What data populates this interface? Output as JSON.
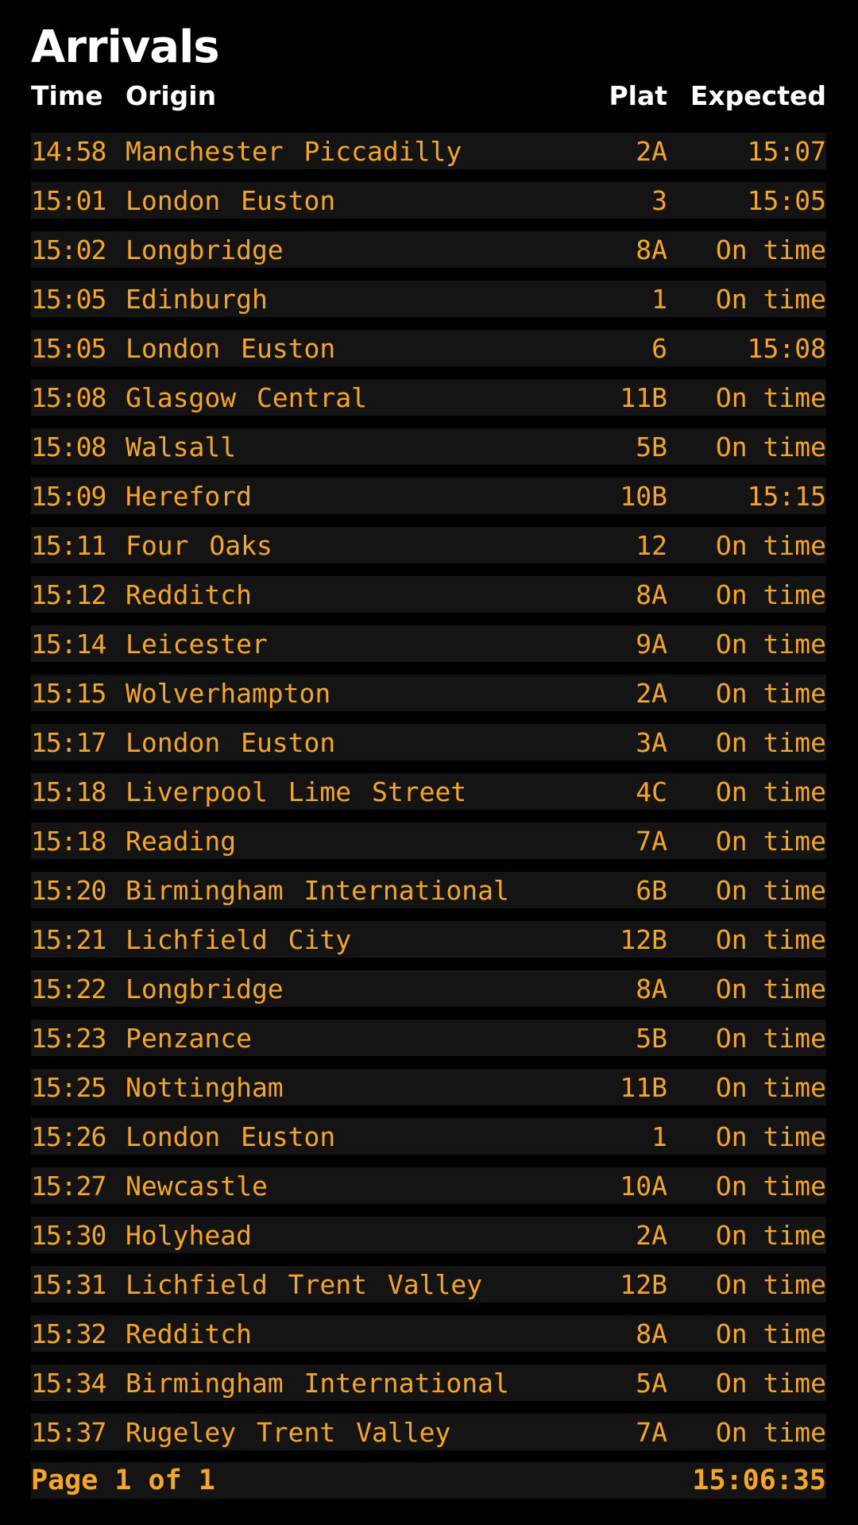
{
  "title": "Arrivals",
  "colors": {
    "background": "#000000",
    "row_background": "#141414",
    "amber": "#f5a623",
    "header_text": "#ffffff"
  },
  "headers": {
    "time": "Time",
    "origin": "Origin",
    "plat": "Plat",
    "expected": "Expected"
  },
  "arrivals": [
    {
      "time": "14:58",
      "origin": "Manchester Piccadilly",
      "plat": "2A",
      "expected": "15:07"
    },
    {
      "time": "15:01",
      "origin": "London Euston",
      "plat": "3",
      "expected": "15:05"
    },
    {
      "time": "15:02",
      "origin": "Longbridge",
      "plat": "8A",
      "expected": "On time"
    },
    {
      "time": "15:05",
      "origin": "Edinburgh",
      "plat": "1",
      "expected": "On time"
    },
    {
      "time": "15:05",
      "origin": "London Euston",
      "plat": "6",
      "expected": "15:08"
    },
    {
      "time": "15:08",
      "origin": "Glasgow Central",
      "plat": "11B",
      "expected": "On time"
    },
    {
      "time": "15:08",
      "origin": "Walsall",
      "plat": "5B",
      "expected": "On time"
    },
    {
      "time": "15:09",
      "origin": "Hereford",
      "plat": "10B",
      "expected": "15:15"
    },
    {
      "time": "15:11",
      "origin": "Four Oaks",
      "plat": "12",
      "expected": "On time"
    },
    {
      "time": "15:12",
      "origin": "Redditch",
      "plat": "8A",
      "expected": "On time"
    },
    {
      "time": "15:14",
      "origin": "Leicester",
      "plat": "9A",
      "expected": "On time"
    },
    {
      "time": "15:15",
      "origin": "Wolverhampton",
      "plat": "2A",
      "expected": "On time"
    },
    {
      "time": "15:17",
      "origin": "London Euston",
      "plat": "3A",
      "expected": "On time"
    },
    {
      "time": "15:18",
      "origin": "Liverpool Lime Street",
      "plat": "4C",
      "expected": "On time"
    },
    {
      "time": "15:18",
      "origin": "Reading",
      "plat": "7A",
      "expected": "On time"
    },
    {
      "time": "15:20",
      "origin": "Birmingham International",
      "plat": "6B",
      "expected": "On time"
    },
    {
      "time": "15:21",
      "origin": "Lichfield City",
      "plat": "12B",
      "expected": "On time"
    },
    {
      "time": "15:22",
      "origin": "Longbridge",
      "plat": "8A",
      "expected": "On time"
    },
    {
      "time": "15:23",
      "origin": "Penzance",
      "plat": "5B",
      "expected": "On time"
    },
    {
      "time": "15:25",
      "origin": "Nottingham",
      "plat": "11B",
      "expected": "On time"
    },
    {
      "time": "15:26",
      "origin": "London Euston",
      "plat": "1",
      "expected": "On time"
    },
    {
      "time": "15:27",
      "origin": "Newcastle",
      "plat": "10A",
      "expected": "On time"
    },
    {
      "time": "15:30",
      "origin": "Holyhead",
      "plat": "2A",
      "expected": "On time"
    },
    {
      "time": "15:31",
      "origin": "Lichfield Trent Valley",
      "plat": "12B",
      "expected": "On time"
    },
    {
      "time": "15:32",
      "origin": "Redditch",
      "plat": "8A",
      "expected": "On time"
    },
    {
      "time": "15:34",
      "origin": "Birmingham International",
      "plat": "5A",
      "expected": "On time"
    },
    {
      "time": "15:37",
      "origin": "Rugeley Trent Valley",
      "plat": "7A",
      "expected": "On time"
    }
  ],
  "footer": {
    "page": "Page 1 of 1",
    "clock": "15:06:35"
  }
}
